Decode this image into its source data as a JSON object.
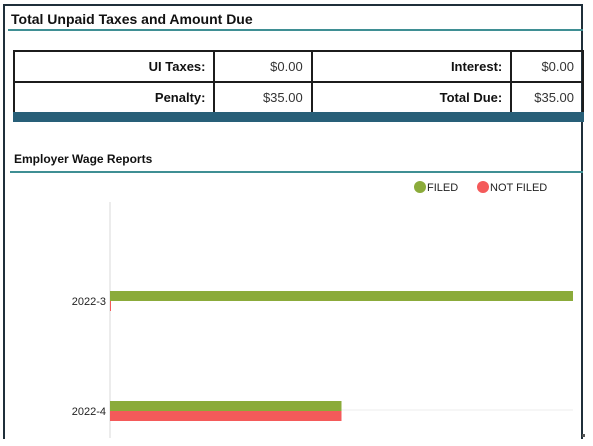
{
  "panel": {
    "title": "Total Unpaid Taxes and Amount Due",
    "rows": [
      {
        "label1": "UI Taxes:",
        "value1": "$0.00",
        "label2": "Interest:",
        "value2": "$0.00"
      },
      {
        "label1": "Penalty:",
        "value1": "$35.00",
        "label2": "Total Due:",
        "value2": "$35.00"
      }
    ]
  },
  "reports": {
    "title": "Employer Wage Reports"
  },
  "colors": {
    "filed": "#8bab3a",
    "not_filed": "#f45a5a",
    "accent_rule": "#3f8f94",
    "band": "#285f78"
  },
  "chart_data": {
    "type": "bar",
    "orientation": "horizontal",
    "categories": [
      "2022-3",
      "2022-4"
    ],
    "series": [
      {
        "name": "FILED",
        "color": "#8bab3a",
        "values": [
          1,
          0.5
        ]
      },
      {
        "name": "NOT FILED",
        "color": "#f45a5a",
        "values": [
          0,
          0.5
        ]
      }
    ],
    "xlim": [
      0,
      1
    ],
    "legend": "top-right",
    "grid": false
  }
}
